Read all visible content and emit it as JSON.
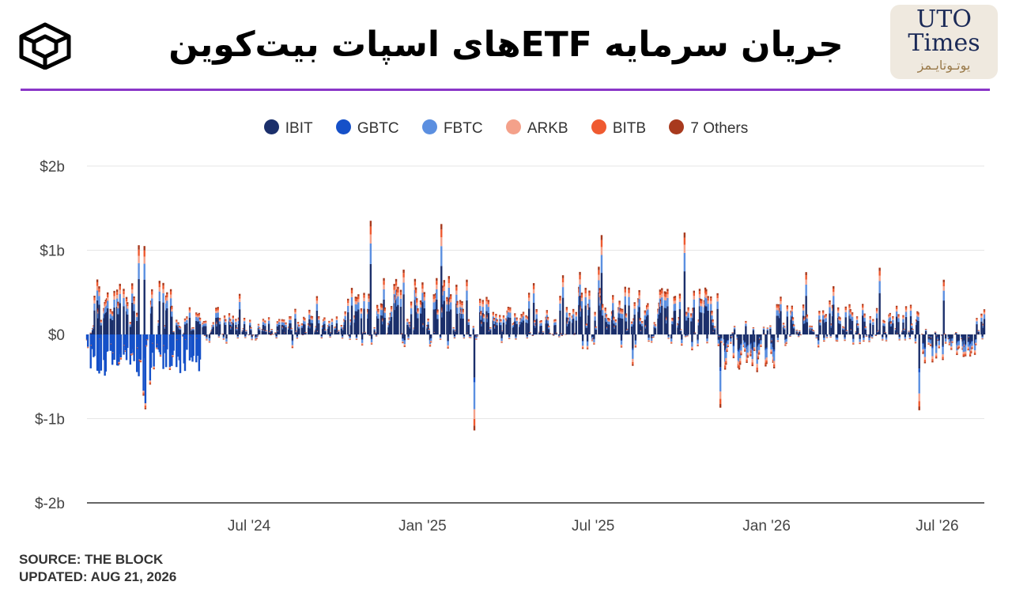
{
  "header": {
    "title": "جریان سرمایه ETFهای اسپات بیت‌کوین",
    "logo_right": {
      "line1": "UTO",
      "line2": "Times",
      "line3": "یوتـوتایـمز"
    }
  },
  "legend": [
    {
      "label": "IBIT",
      "color": "#1b2f6b"
    },
    {
      "label": "GBTC",
      "color": "#1550c8"
    },
    {
      "label": "FBTC",
      "color": "#5b8fe0"
    },
    {
      "label": "ARKB",
      "color": "#f4a18a"
    },
    {
      "label": "BITB",
      "color": "#ef5a30"
    },
    {
      "label": "7 Others",
      "color": "#a83a1e"
    }
  ],
  "chart_data": {
    "type": "bar",
    "stacked": true,
    "granularity": "daily",
    "x_range": [
      "2024-01-11",
      "2026-08-20"
    ],
    "x_ticks": [
      {
        "date": "2024-07-01",
        "label": "Jul '24"
      },
      {
        "date": "2025-01-01",
        "label": "Jan '25"
      },
      {
        "date": "2025-07-01",
        "label": "Jul '25"
      },
      {
        "date": "2026-01-01",
        "label": "Jan '26"
      },
      {
        "date": "2026-07-01",
        "label": "Jul '26"
      }
    ],
    "y_ticks": [
      {
        "value": 2,
        "label": "$2b"
      },
      {
        "value": 1,
        "label": "$1b"
      },
      {
        "value": 0,
        "label": "$0"
      },
      {
        "value": -1,
        "label": "$-1b"
      },
      {
        "value": -2,
        "label": "$-2b"
      }
    ],
    "ylim": [
      -2,
      2
    ],
    "y_unit": "billion USD",
    "grid": true,
    "legend_position": "top-center",
    "series": [
      {
        "name": "IBIT",
        "color": "#1b2f6b"
      },
      {
        "name": "GBTC",
        "color": "#1550c8"
      },
      {
        "name": "FBTC",
        "color": "#5b8fe0"
      },
      {
        "name": "ARKB",
        "color": "#f4a18a"
      },
      {
        "name": "BITB",
        "color": "#ef5a30"
      },
      {
        "name": "7 Others",
        "color": "#a83a1e"
      }
    ],
    "notable_daily_totals": [
      {
        "date": "2024-03-12",
        "total": 1.05
      },
      {
        "date": "2024-11-07",
        "total": 1.35
      },
      {
        "date": "2025-02-25",
        "total": -1.14
      },
      {
        "date": "2025-07-10",
        "total": 1.18
      },
      {
        "date": "2025-10-06",
        "total": 1.21
      },
      {
        "date": "2025-11-13",
        "total": -0.87
      },
      {
        "date": "2026-07-08",
        "total": 0.65
      }
    ]
  },
  "footer": {
    "source": "SOURCE: THE BLOCK",
    "updated": "UPDATED: AUG 21, 2026"
  }
}
